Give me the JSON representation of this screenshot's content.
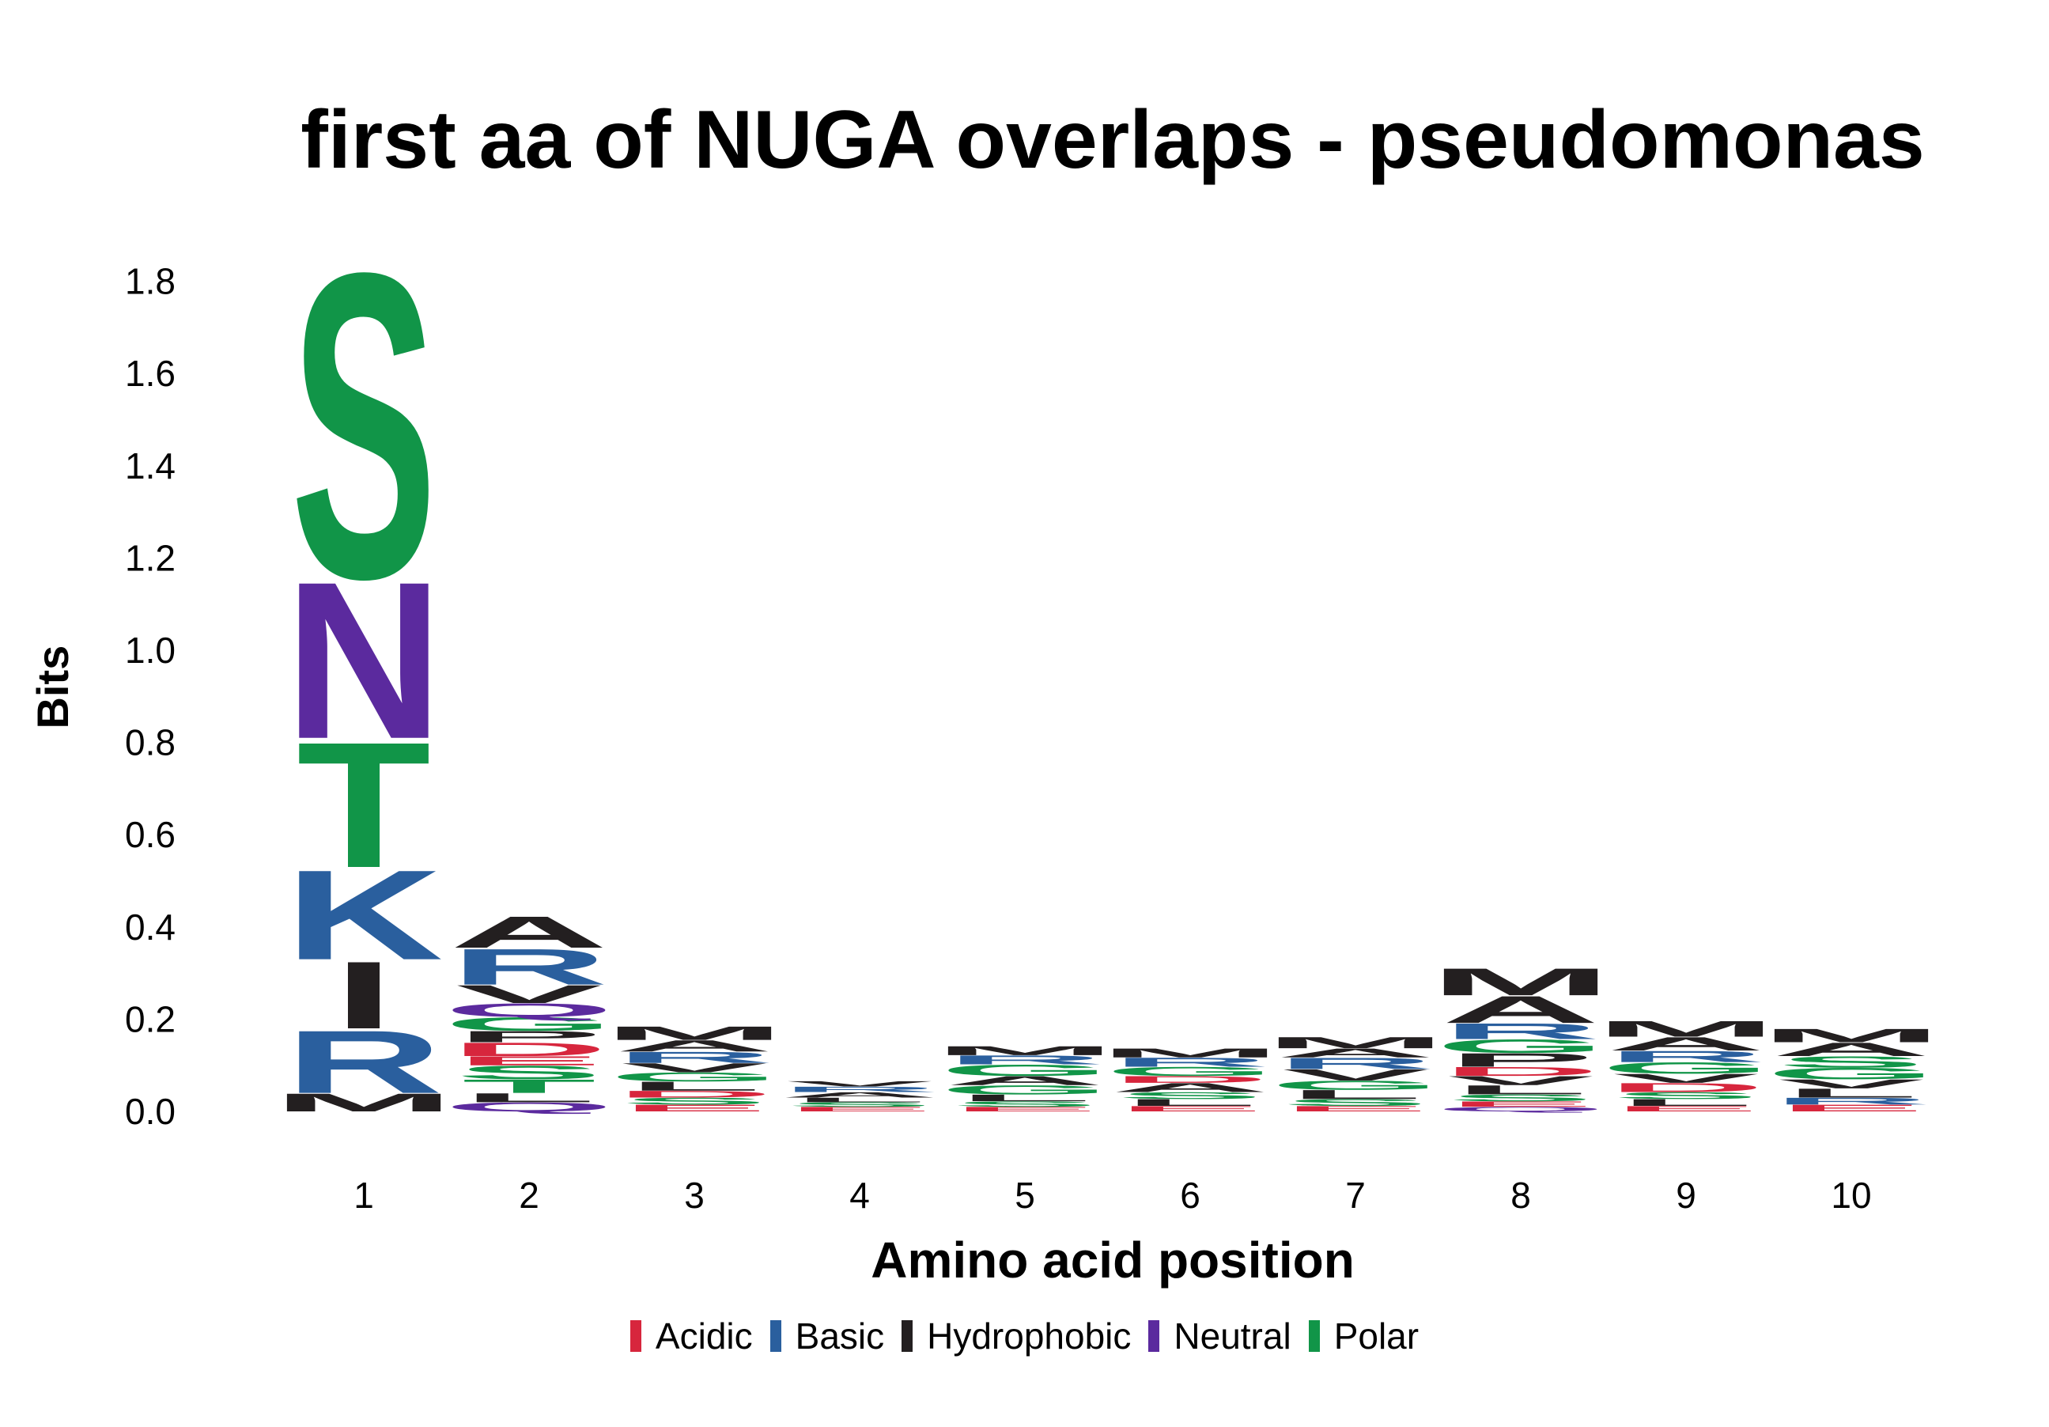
{
  "chart_data": {
    "type": "sequence-logo",
    "title": "first aa of NUGA overlaps - pseudomonas",
    "xlabel": "Amino acid position",
    "ylabel": "Bits",
    "ylim": [
      0,
      1.85
    ],
    "yticks": [
      "0.0",
      "0.2",
      "0.4",
      "0.6",
      "0.8",
      "1.0",
      "1.2",
      "1.4",
      "1.6",
      "1.8"
    ],
    "categories": [
      "1",
      "2",
      "3",
      "4",
      "5",
      "6",
      "7",
      "8",
      "9",
      "10"
    ],
    "groups": [
      {
        "name": "Acidic",
        "color": "#d7263d"
      },
      {
        "name": "Basic",
        "color": "#2a5f9e"
      },
      {
        "name": "Hydrophobic",
        "color": "#231f20"
      },
      {
        "name": "Neutral",
        "color": "#5b2a9e"
      },
      {
        "name": "Polar",
        "color": "#119548"
      }
    ],
    "positions": [
      {
        "position": "1",
        "letters": [
          {
            "aa": "M",
            "group": "Hydrophobic",
            "bits": 0.04
          },
          {
            "aa": "R",
            "group": "Basic",
            "bits": 0.14
          },
          {
            "aa": "I",
            "group": "Hydrophobic",
            "bits": 0.15
          },
          {
            "aa": "K",
            "group": "Basic",
            "bits": 0.2
          },
          {
            "aa": "T",
            "group": "Polar",
            "bits": 0.28
          },
          {
            "aa": "N",
            "group": "Neutral",
            "bits": 0.35
          },
          {
            "aa": "S",
            "group": "Polar",
            "bits": 0.68
          }
        ]
      },
      {
        "position": "2",
        "letters": [
          {
            "aa": "Q",
            "group": "Neutral",
            "bits": 0.02
          },
          {
            "aa": "L",
            "group": "Hydrophobic",
            "bits": 0.02
          },
          {
            "aa": "T",
            "group": "Polar",
            "bits": 0.03
          },
          {
            "aa": "S",
            "group": "Polar",
            "bits": 0.03
          },
          {
            "aa": "E",
            "group": "Acidic",
            "bits": 0.02
          },
          {
            "aa": "D",
            "group": "Acidic",
            "bits": 0.03
          },
          {
            "aa": "P",
            "group": "Hydrophobic",
            "bits": 0.025
          },
          {
            "aa": "G",
            "group": "Polar",
            "bits": 0.03
          },
          {
            "aa": "Q",
            "group": "Neutral",
            "bits": 0.03
          },
          {
            "aa": "V",
            "group": "Hydrophobic",
            "bits": 0.04
          },
          {
            "aa": "R",
            "group": "Basic",
            "bits": 0.08
          },
          {
            "aa": "A",
            "group": "Hydrophobic",
            "bits": 0.07
          }
        ]
      },
      {
        "position": "3",
        "letters": [
          {
            "aa": "E",
            "group": "Acidic",
            "bits": 0.015
          },
          {
            "aa": "S",
            "group": "Polar",
            "bits": 0.015
          },
          {
            "aa": "D",
            "group": "Acidic",
            "bits": 0.015
          },
          {
            "aa": "L",
            "group": "Hydrophobic",
            "bits": 0.02
          },
          {
            "aa": "G",
            "group": "Polar",
            "bits": 0.02
          },
          {
            "aa": "V",
            "group": "Hydrophobic",
            "bits": 0.02
          },
          {
            "aa": "R",
            "group": "Basic",
            "bits": 0.025
          },
          {
            "aa": "A",
            "group": "Hydrophobic",
            "bits": 0.025
          },
          {
            "aa": "M",
            "group": "Hydrophobic",
            "bits": 0.03
          }
        ]
      },
      {
        "position": "4",
        "letters": [
          {
            "aa": "E",
            "group": "Acidic",
            "bits": 0.01
          },
          {
            "aa": "S",
            "group": "Polar",
            "bits": 0.01
          },
          {
            "aa": "L",
            "group": "Hydrophobic",
            "bits": 0.01
          },
          {
            "aa": "A",
            "group": "Hydrophobic",
            "bits": 0.012
          },
          {
            "aa": "R",
            "group": "Basic",
            "bits": 0.012
          },
          {
            "aa": "V",
            "group": "Hydrophobic",
            "bits": 0.012
          }
        ]
      },
      {
        "position": "5",
        "letters": [
          {
            "aa": "E",
            "group": "Acidic",
            "bits": 0.01
          },
          {
            "aa": "S",
            "group": "Polar",
            "bits": 0.012
          },
          {
            "aa": "L",
            "group": "Hydrophobic",
            "bits": 0.015
          },
          {
            "aa": "G",
            "group": "Polar",
            "bits": 0.02
          },
          {
            "aa": "A",
            "group": "Hydrophobic",
            "bits": 0.02
          },
          {
            "aa": "G",
            "group": "Polar",
            "bits": 0.025
          },
          {
            "aa": "R",
            "group": "Basic",
            "bits": 0.02
          },
          {
            "aa": "M",
            "group": "Hydrophobic",
            "bits": 0.02
          }
        ]
      },
      {
        "position": "6",
        "letters": [
          {
            "aa": "E",
            "group": "Acidic",
            "bits": 0.012
          },
          {
            "aa": "L",
            "group": "Hydrophobic",
            "bits": 0.015
          },
          {
            "aa": "S",
            "group": "Polar",
            "bits": 0.015
          },
          {
            "aa": "A",
            "group": "Hydrophobic",
            "bits": 0.02
          },
          {
            "aa": "D",
            "group": "Acidic",
            "bits": 0.015
          },
          {
            "aa": "G",
            "group": "Polar",
            "bits": 0.02
          },
          {
            "aa": "R",
            "group": "Basic",
            "bits": 0.02
          },
          {
            "aa": "M",
            "group": "Hydrophobic",
            "bits": 0.02
          }
        ]
      },
      {
        "position": "7",
        "letters": [
          {
            "aa": "E",
            "group": "Acidic",
            "bits": 0.012
          },
          {
            "aa": "S",
            "group": "Polar",
            "bits": 0.015
          },
          {
            "aa": "L",
            "group": "Hydrophobic",
            "bits": 0.02
          },
          {
            "aa": "G",
            "group": "Polar",
            "bits": 0.02
          },
          {
            "aa": "V",
            "group": "Hydrophobic",
            "bits": 0.025
          },
          {
            "aa": "R",
            "group": "Basic",
            "bits": 0.025
          },
          {
            "aa": "A",
            "group": "Hydrophobic",
            "bits": 0.02
          },
          {
            "aa": "M",
            "group": "Hydrophobic",
            "bits": 0.025
          }
        ]
      },
      {
        "position": "8",
        "letters": [
          {
            "aa": "Q",
            "group": "Neutral",
            "bits": 0.01
          },
          {
            "aa": "E",
            "group": "Acidic",
            "bits": 0.012
          },
          {
            "aa": "S",
            "group": "Polar",
            "bits": 0.015
          },
          {
            "aa": "L",
            "group": "Hydrophobic",
            "bits": 0.02
          },
          {
            "aa": "V",
            "group": "Hydrophobic",
            "bits": 0.02
          },
          {
            "aa": "D",
            "group": "Acidic",
            "bits": 0.02
          },
          {
            "aa": "P",
            "group": "Hydrophobic",
            "bits": 0.03
          },
          {
            "aa": "G",
            "group": "Polar",
            "bits": 0.03
          },
          {
            "aa": "R",
            "group": "Basic",
            "bits": 0.035
          },
          {
            "aa": "A",
            "group": "Hydrophobic",
            "bits": 0.06
          },
          {
            "aa": "M",
            "group": "Hydrophobic",
            "bits": 0.06
          }
        ]
      },
      {
        "position": "9",
        "letters": [
          {
            "aa": "E",
            "group": "Acidic",
            "bits": 0.012
          },
          {
            "aa": "L",
            "group": "Hydrophobic",
            "bits": 0.015
          },
          {
            "aa": "S",
            "group": "Polar",
            "bits": 0.015
          },
          {
            "aa": "D",
            "group": "Acidic",
            "bits": 0.02
          },
          {
            "aa": "V",
            "group": "Hydrophobic",
            "bits": 0.02
          },
          {
            "aa": "G",
            "group": "Polar",
            "bits": 0.025
          },
          {
            "aa": "R",
            "group": "Basic",
            "bits": 0.025
          },
          {
            "aa": "A",
            "group": "Hydrophobic",
            "bits": 0.03
          },
          {
            "aa": "M",
            "group": "Hydrophobic",
            "bits": 0.035
          }
        ]
      },
      {
        "position": "10",
        "letters": [
          {
            "aa": "E",
            "group": "Acidic",
            "bits": 0.015
          },
          {
            "aa": "R",
            "group": "Basic",
            "bits": 0.015
          },
          {
            "aa": "L",
            "group": "Hydrophobic",
            "bits": 0.02
          },
          {
            "aa": "V",
            "group": "Hydrophobic",
            "bits": 0.02
          },
          {
            "aa": "G",
            "group": "Polar",
            "bits": 0.025
          },
          {
            "aa": "S",
            "group": "Polar",
            "bits": 0.025
          },
          {
            "aa": "A",
            "group": "Hydrophobic",
            "bits": 0.03
          },
          {
            "aa": "M",
            "group": "Hydrophobic",
            "bits": 0.03
          }
        ]
      }
    ]
  }
}
